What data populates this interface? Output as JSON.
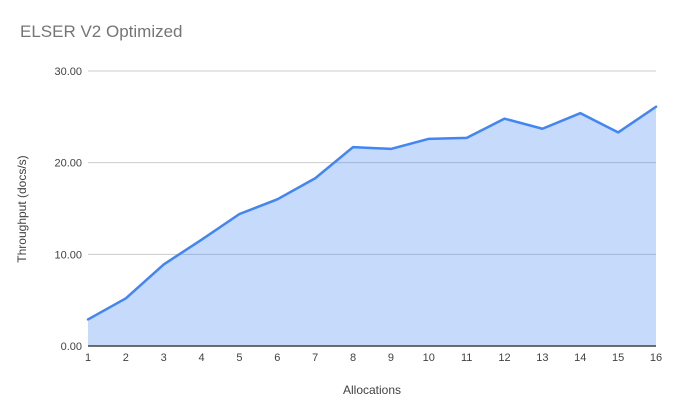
{
  "chart_data": {
    "type": "area",
    "title": "ELSER V2 Optimized",
    "xlabel": "Allocations",
    "ylabel": "Throughput (docs/s)",
    "categories": [
      1,
      2,
      3,
      4,
      5,
      6,
      7,
      8,
      9,
      10,
      11,
      12,
      13,
      14,
      15,
      16
    ],
    "series": [
      {
        "name": "Throughput",
        "values": [
          2.9,
          5.2,
          8.9,
          11.6,
          14.4,
          16.0,
          18.3,
          21.7,
          21.5,
          22.6,
          22.7,
          24.8,
          23.7,
          25.4,
          23.3,
          26.1
        ]
      }
    ],
    "ylim": [
      0,
      30
    ],
    "y_ticks": [
      {
        "value": 0,
        "label": "0.00"
      },
      {
        "value": 10,
        "label": "10.00"
      },
      {
        "value": 20,
        "label": "20.00"
      },
      {
        "value": 30,
        "label": "30.00"
      }
    ],
    "grid": "horizontal",
    "legend": "none",
    "colors": {
      "line": "#4285f4",
      "fill": "#4285f4",
      "fill_opacity": 0.3,
      "gridline": "#cccccc",
      "axis_baseline": "#424242",
      "tick_text": "#424242",
      "title_text": "#757575"
    }
  }
}
